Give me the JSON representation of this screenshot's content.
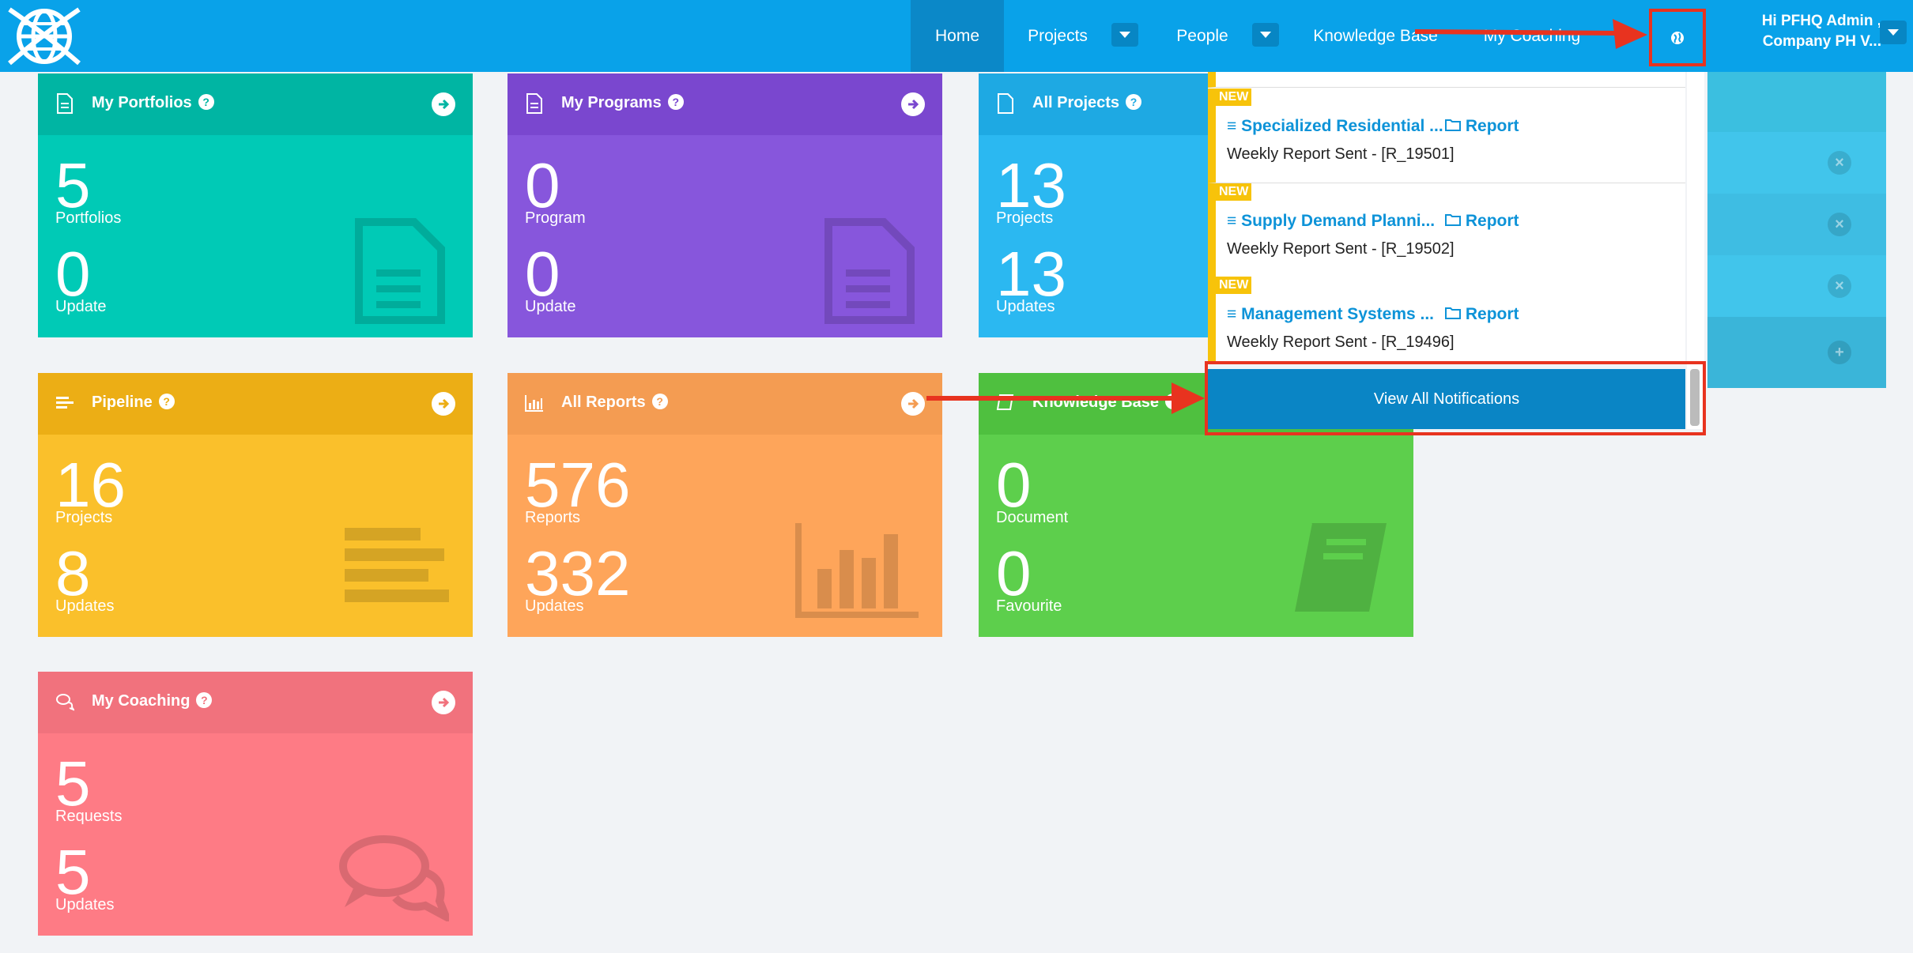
{
  "nav": {
    "home": "Home",
    "projects": "Projects",
    "people": "People",
    "knowledge_base": "Knowledge Base",
    "my_coaching": "My Coaching",
    "user_line1": "Hi PFHQ Admin ,",
    "user_line2": "Company PH V..."
  },
  "cards": {
    "portfolios": {
      "title": "My Portfolios",
      "n1": "5",
      "l1": "Portfolios",
      "n2": "0",
      "l2": "Update"
    },
    "programs": {
      "title": "My Programs",
      "n1": "0",
      "l1": "Program",
      "n2": "0",
      "l2": "Update"
    },
    "projects": {
      "title": "All Projects",
      "n1": "13",
      "l1": "Projects",
      "n2": "13",
      "l2": "Updates"
    },
    "pipeline": {
      "title": "Pipeline",
      "n1": "16",
      "l1": "Projects",
      "n2": "8",
      "l2": "Updates"
    },
    "reports": {
      "title": "All Reports",
      "n1": "576",
      "l1": "Reports",
      "n2": "332",
      "l2": "Updates"
    },
    "kb": {
      "title": "Knowledge Base",
      "n1": "0",
      "l1": "Document",
      "n2": "0",
      "l2": "Favourite"
    },
    "coaching": {
      "title": "My Coaching",
      "n1": "5",
      "l1": "Requests",
      "n2": "5",
      "l2": "Updates"
    }
  },
  "notifications": {
    "items": [
      {
        "tag": "NEW",
        "title": "Specialized Residential ...",
        "type": "Report",
        "sub": "Weekly Report Sent - [R_19501]"
      },
      {
        "tag": "NEW",
        "title": "Supply Demand Planni...",
        "type": "Report",
        "sub": "Weekly Report Sent - [R_19502]"
      },
      {
        "tag": "NEW",
        "title": "Management Systems ...",
        "type": "Report",
        "sub": "Weekly Report Sent - [R_19496]"
      }
    ],
    "view_all": "View All Notifications"
  },
  "colors": {
    "topbar": "#09a2e9",
    "portfolios": "#00c8b4",
    "programs": "#8554db",
    "projects": "#29b6f0",
    "pipeline": "#f9be29",
    "reports": "#fea55a",
    "kb": "#5dce4c",
    "coaching": "#fe7a84",
    "annotation": "#e8331f"
  }
}
